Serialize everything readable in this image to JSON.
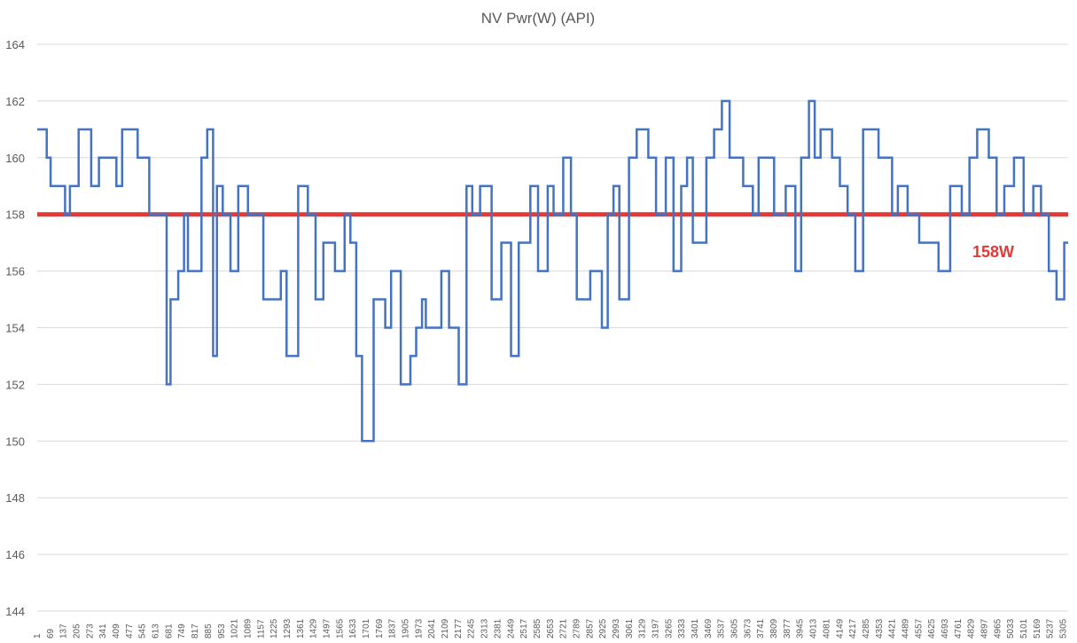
{
  "chart_data": {
    "type": "line",
    "title": "NV Pwr(W) (API)",
    "xlabel": "",
    "ylabel": "",
    "ylim": [
      144,
      164
    ],
    "yticks": [
      144,
      146,
      148,
      150,
      152,
      154,
      156,
      158,
      160,
      162,
      164
    ],
    "xlim": [
      1,
      5330
    ],
    "xticks": [
      1,
      69,
      137,
      205,
      273,
      341,
      409,
      477,
      545,
      613,
      681,
      749,
      817,
      885,
      953,
      1021,
      1089,
      1157,
      1225,
      1293,
      1361,
      1429,
      1497,
      1565,
      1633,
      1701,
      1769,
      1837,
      1905,
      1973,
      2041,
      2109,
      2177,
      2245,
      2313,
      2381,
      2449,
      2517,
      2585,
      2653,
      2721,
      2789,
      2857,
      2925,
      2993,
      3061,
      3129,
      3197,
      3265,
      3333,
      3401,
      3469,
      3537,
      3605,
      3673,
      3741,
      3809,
      3877,
      3945,
      4013,
      4081,
      4149,
      4217,
      4285,
      4353,
      4421,
      4489,
      4557,
      4625,
      4693,
      4761,
      4829,
      4897,
      4965,
      5033,
      5101,
      5169,
      5237,
      5305
    ],
    "grid": true,
    "legend": "none",
    "series": [
      {
        "color": "#4472c4",
        "step": true,
        "x": [
          1,
          50,
          70,
          145,
          170,
          215,
          280,
          320,
          410,
          440,
          520,
          580,
          670,
          690,
          730,
          760,
          780,
          850,
          880,
          910,
          930,
          960,
          1000,
          1040,
          1090,
          1170,
          1260,
          1290,
          1350,
          1400,
          1440,
          1480,
          1540,
          1590,
          1620,
          1650,
          1680,
          1740,
          1800,
          1830,
          1880,
          1930,
          1960,
          1990,
          2010,
          2090,
          2130,
          2180,
          2220,
          2250,
          2290,
          2350,
          2400,
          2450,
          2490,
          2550,
          2590,
          2640,
          2670,
          2720,
          2760,
          2790,
          2860,
          2920,
          2950,
          2980,
          3010,
          3060,
          3100,
          3160,
          3200,
          3250,
          3290,
          3330,
          3360,
          3390,
          3460,
          3500,
          3540,
          3580,
          3650,
          3700,
          3730,
          3810,
          3870,
          3920,
          3950,
          3990,
          4020,
          4050,
          4110,
          4150,
          4190,
          4230,
          4270,
          4350,
          4420,
          4450,
          4500,
          4560,
          4660,
          4720,
          4780,
          4820,
          4860,
          4920,
          4960,
          5000,
          5050,
          5100,
          5150,
          5190,
          5230,
          5270,
          5310
        ],
        "y": [
          161,
          160,
          159,
          158,
          159,
          161,
          159,
          160,
          159,
          161,
          160,
          158,
          152,
          155,
          156,
          158,
          156,
          160,
          161,
          153,
          159,
          158,
          156,
          159,
          158,
          155,
          156,
          153,
          159,
          158,
          155,
          157,
          156,
          158,
          157,
          153,
          150,
          155,
          154,
          156,
          152,
          153,
          154,
          155,
          154,
          156,
          154,
          152,
          159,
          158,
          159,
          155,
          157,
          153,
          157,
          159,
          156,
          159,
          158,
          160,
          158,
          155,
          156,
          154,
          158,
          159,
          155,
          160,
          161,
          160,
          158,
          160,
          156,
          159,
          160,
          157,
          160,
          161,
          162,
          160,
          159,
          158,
          160,
          158,
          159,
          156,
          160,
          162,
          160,
          161,
          160,
          159,
          158,
          156,
          161,
          160,
          158,
          159,
          158,
          157,
          156,
          159,
          158,
          160,
          161,
          160,
          158,
          159,
          160,
          158,
          159,
          158,
          156,
          155,
          157
        ]
      }
    ],
    "reference_line": {
      "value": 158,
      "label": "158W",
      "color": "#e53935"
    }
  }
}
